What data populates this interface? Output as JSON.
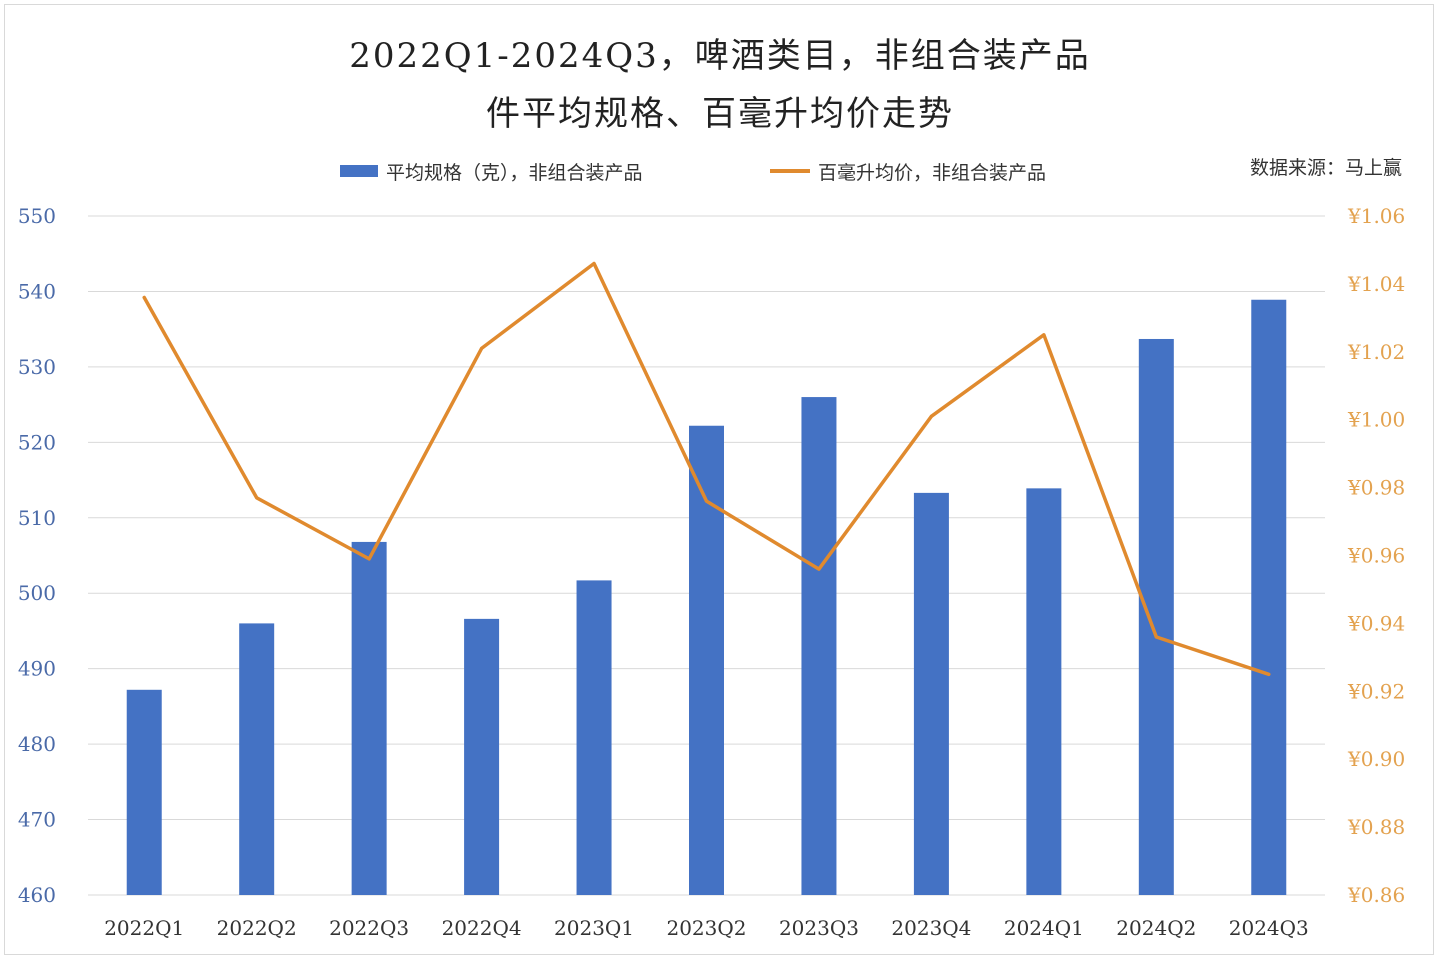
{
  "title_line1": "2022Q1-2024Q3，啤酒类目，非组合装产品",
  "title_line2": "件平均规格、百毫升均价走势",
  "legend": {
    "bar_label": "平均规格（克），非组合装产品",
    "line_label": "百毫升均价，非组合装产品"
  },
  "source": "数据来源：马上赢",
  "colors": {
    "bar": "#4472c4",
    "line": "#e08a2e",
    "left_axis_text": "#4a6aa8",
    "right_axis_text": "#e3a24f",
    "grid": "#d9d9d9"
  },
  "chart_data": {
    "type": "bar",
    "categories": [
      "2022Q1",
      "2022Q2",
      "2022Q3",
      "2022Q4",
      "2023Q1",
      "2023Q2",
      "2023Q3",
      "2023Q4",
      "2024Q1",
      "2024Q2",
      "2024Q3"
    ],
    "series": [
      {
        "name": "平均规格（克），非组合装产品",
        "type": "bar",
        "axis": "left",
        "values": [
          487.2,
          496.0,
          506.8,
          496.6,
          501.7,
          522.2,
          526.0,
          513.3,
          513.9,
          533.7,
          538.9
        ]
      },
      {
        "name": "百毫升均价，非组合装产品",
        "type": "line",
        "axis": "right",
        "values": [
          1.036,
          0.977,
          0.959,
          1.021,
          1.046,
          0.976,
          0.956,
          1.001,
          1.025,
          0.936,
          0.925
        ]
      }
    ],
    "y_left": {
      "min": 460,
      "max": 550,
      "step": 10,
      "ticks": [
        "550",
        "540",
        "530",
        "520",
        "510",
        "500",
        "490",
        "480",
        "470",
        "460"
      ]
    },
    "y_right": {
      "min": 0.86,
      "max": 1.06,
      "step": 0.02,
      "ticks": [
        "¥1.06",
        "¥1.04",
        "¥1.02",
        "¥1.00",
        "¥0.98",
        "¥0.96",
        "¥0.94",
        "¥0.92",
        "¥0.90",
        "¥0.88",
        "¥0.86"
      ]
    },
    "grid": true,
    "legend_position": "top-center"
  }
}
